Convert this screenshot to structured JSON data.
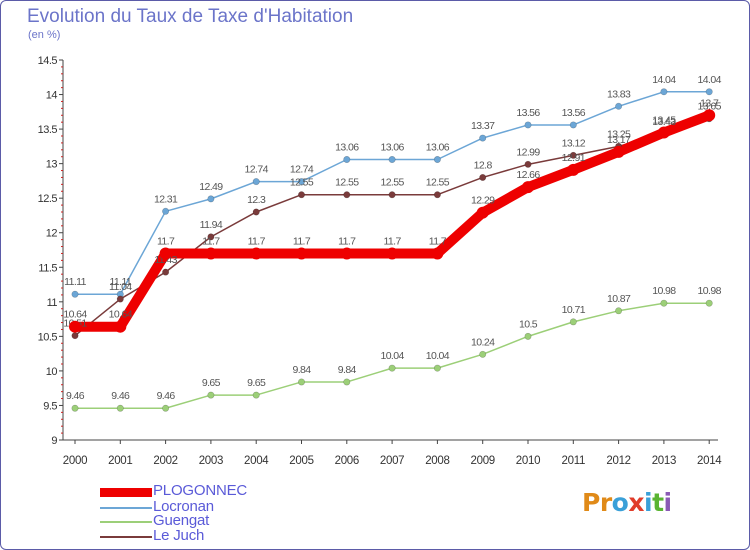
{
  "title": "Evolution du Taux de Taxe d'Habitation",
  "unit_label": "(en %)",
  "logo": {
    "text": "Proxiti",
    "letters": [
      "P",
      "r",
      "o",
      "x",
      "i",
      "t",
      "i"
    ],
    "colors": [
      "#e08a18",
      "#e08a18",
      "#3aa0d8",
      "#e03c2a",
      "#3aa0d8",
      "#5ab432",
      "#8a5ab4"
    ]
  },
  "chart_data": {
    "type": "line",
    "x": [
      "2000",
      "2001",
      "2002",
      "2003",
      "2004",
      "2005",
      "2006",
      "2007",
      "2008",
      "2009",
      "2010",
      "2011",
      "2012",
      "2013",
      "2014"
    ],
    "ylim": [
      9,
      14.5
    ],
    "yticks": [
      "9",
      "9.5",
      "10",
      "10.5",
      "11",
      "11.5",
      "12",
      "12.5",
      "13",
      "13.5",
      "14",
      "14.5"
    ],
    "grid": false,
    "legend_position": "bottom-left",
    "series": [
      {
        "name": "Locronan",
        "color": "#6ca6d6",
        "width": 1.5,
        "values": [
          11.11,
          11.11,
          12.31,
          12.49,
          12.74,
          12.74,
          13.06,
          13.06,
          13.06,
          13.37,
          13.56,
          13.56,
          13.83,
          14.04,
          14.04
        ],
        "labels": [
          "11.11",
          "11.11",
          "12.31",
          "12.49",
          "12.74",
          "12.74",
          "13.06",
          "13.06",
          "13.06",
          "13.37",
          "13.56",
          "13.56",
          "13.83",
          "14.04",
          "14.04"
        ]
      },
      {
        "name": "Guengat",
        "color": "#9ccf78",
        "width": 1.5,
        "values": [
          9.46,
          9.46,
          9.46,
          9.65,
          9.65,
          9.84,
          9.84,
          10.04,
          10.04,
          10.24,
          10.5,
          10.71,
          10.87,
          10.98,
          10.98
        ],
        "labels": [
          "9.46",
          "9.46",
          "9.46",
          "9.65",
          "9.65",
          "9.84",
          "9.84",
          "10.04",
          "10.04",
          "10.24",
          "10.5",
          "10.71",
          "10.87",
          "10.98",
          "10.98"
        ]
      },
      {
        "name": "Le Juch",
        "color": "#7a3b3b",
        "width": 1.5,
        "values": [
          10.51,
          11.04,
          11.43,
          11.94,
          12.3,
          12.55,
          12.55,
          12.55,
          12.55,
          12.8,
          12.99,
          13.12,
          13.25,
          13.43,
          13.65
        ],
        "labels": [
          "10.51",
          "11.04",
          "11.43",
          "11.94",
          "12.3",
          "12.55",
          "12.55",
          "12.55",
          "12.55",
          "12.8",
          "12.99",
          "13.12",
          "13.25",
          "13.43",
          "13.65"
        ]
      },
      {
        "name": "PLOGONNEC",
        "color": "#ee0000",
        "width": 10,
        "values": [
          10.64,
          10.64,
          11.7,
          11.7,
          11.7,
          11.7,
          11.7,
          11.7,
          11.7,
          12.29,
          12.66,
          12.91,
          13.17,
          13.45,
          13.7
        ],
        "labels": [
          "10.64",
          "10.64",
          "11.7",
          "11.7",
          "11.7",
          "11.7",
          "11.7",
          "11.7",
          "11.7",
          "12.29",
          "12.66",
          "12.91",
          "13.17",
          "13.45",
          "13.7"
        ]
      }
    ]
  },
  "legend": {
    "items": [
      {
        "label": "PLOGONNEC",
        "color": "#ee0000",
        "thickness": 9
      },
      {
        "label": "Locronan",
        "color": "#6ca6d6",
        "thickness": 2
      },
      {
        "label": "Guengat",
        "color": "#9ccf78",
        "thickness": 2
      },
      {
        "label": "Le Juch",
        "color": "#7a3b3b",
        "thickness": 2
      }
    ]
  }
}
